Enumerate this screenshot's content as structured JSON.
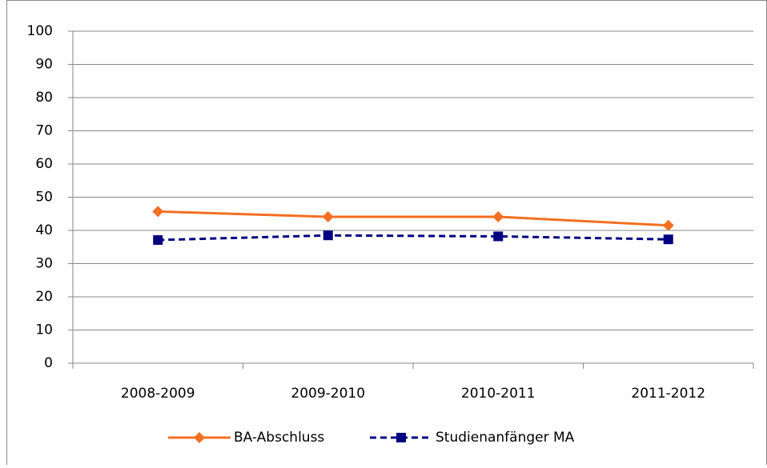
{
  "chart_data": {
    "type": "line",
    "categories": [
      "2008-2009",
      "2009-2010",
      "2010-2011",
      "2011-2012"
    ],
    "series": [
      {
        "name": "BA-Abschluss",
        "color": "#f36f21",
        "marker": "diamond",
        "linestyle": "solid",
        "values": [
          45.7,
          44.1,
          44.1,
          41.5
        ]
      },
      {
        "name": "Studienanfänger MA",
        "color": "#000080",
        "marker": "square",
        "linestyle": "dashed",
        "values": [
          37.1,
          38.5,
          38.2,
          37.3
        ]
      }
    ],
    "ylim": [
      0,
      100
    ],
    "yticks": [
      0,
      10,
      20,
      30,
      40,
      50,
      60,
      70,
      80,
      90,
      100
    ],
    "grid": true,
    "legend": "bottom"
  }
}
